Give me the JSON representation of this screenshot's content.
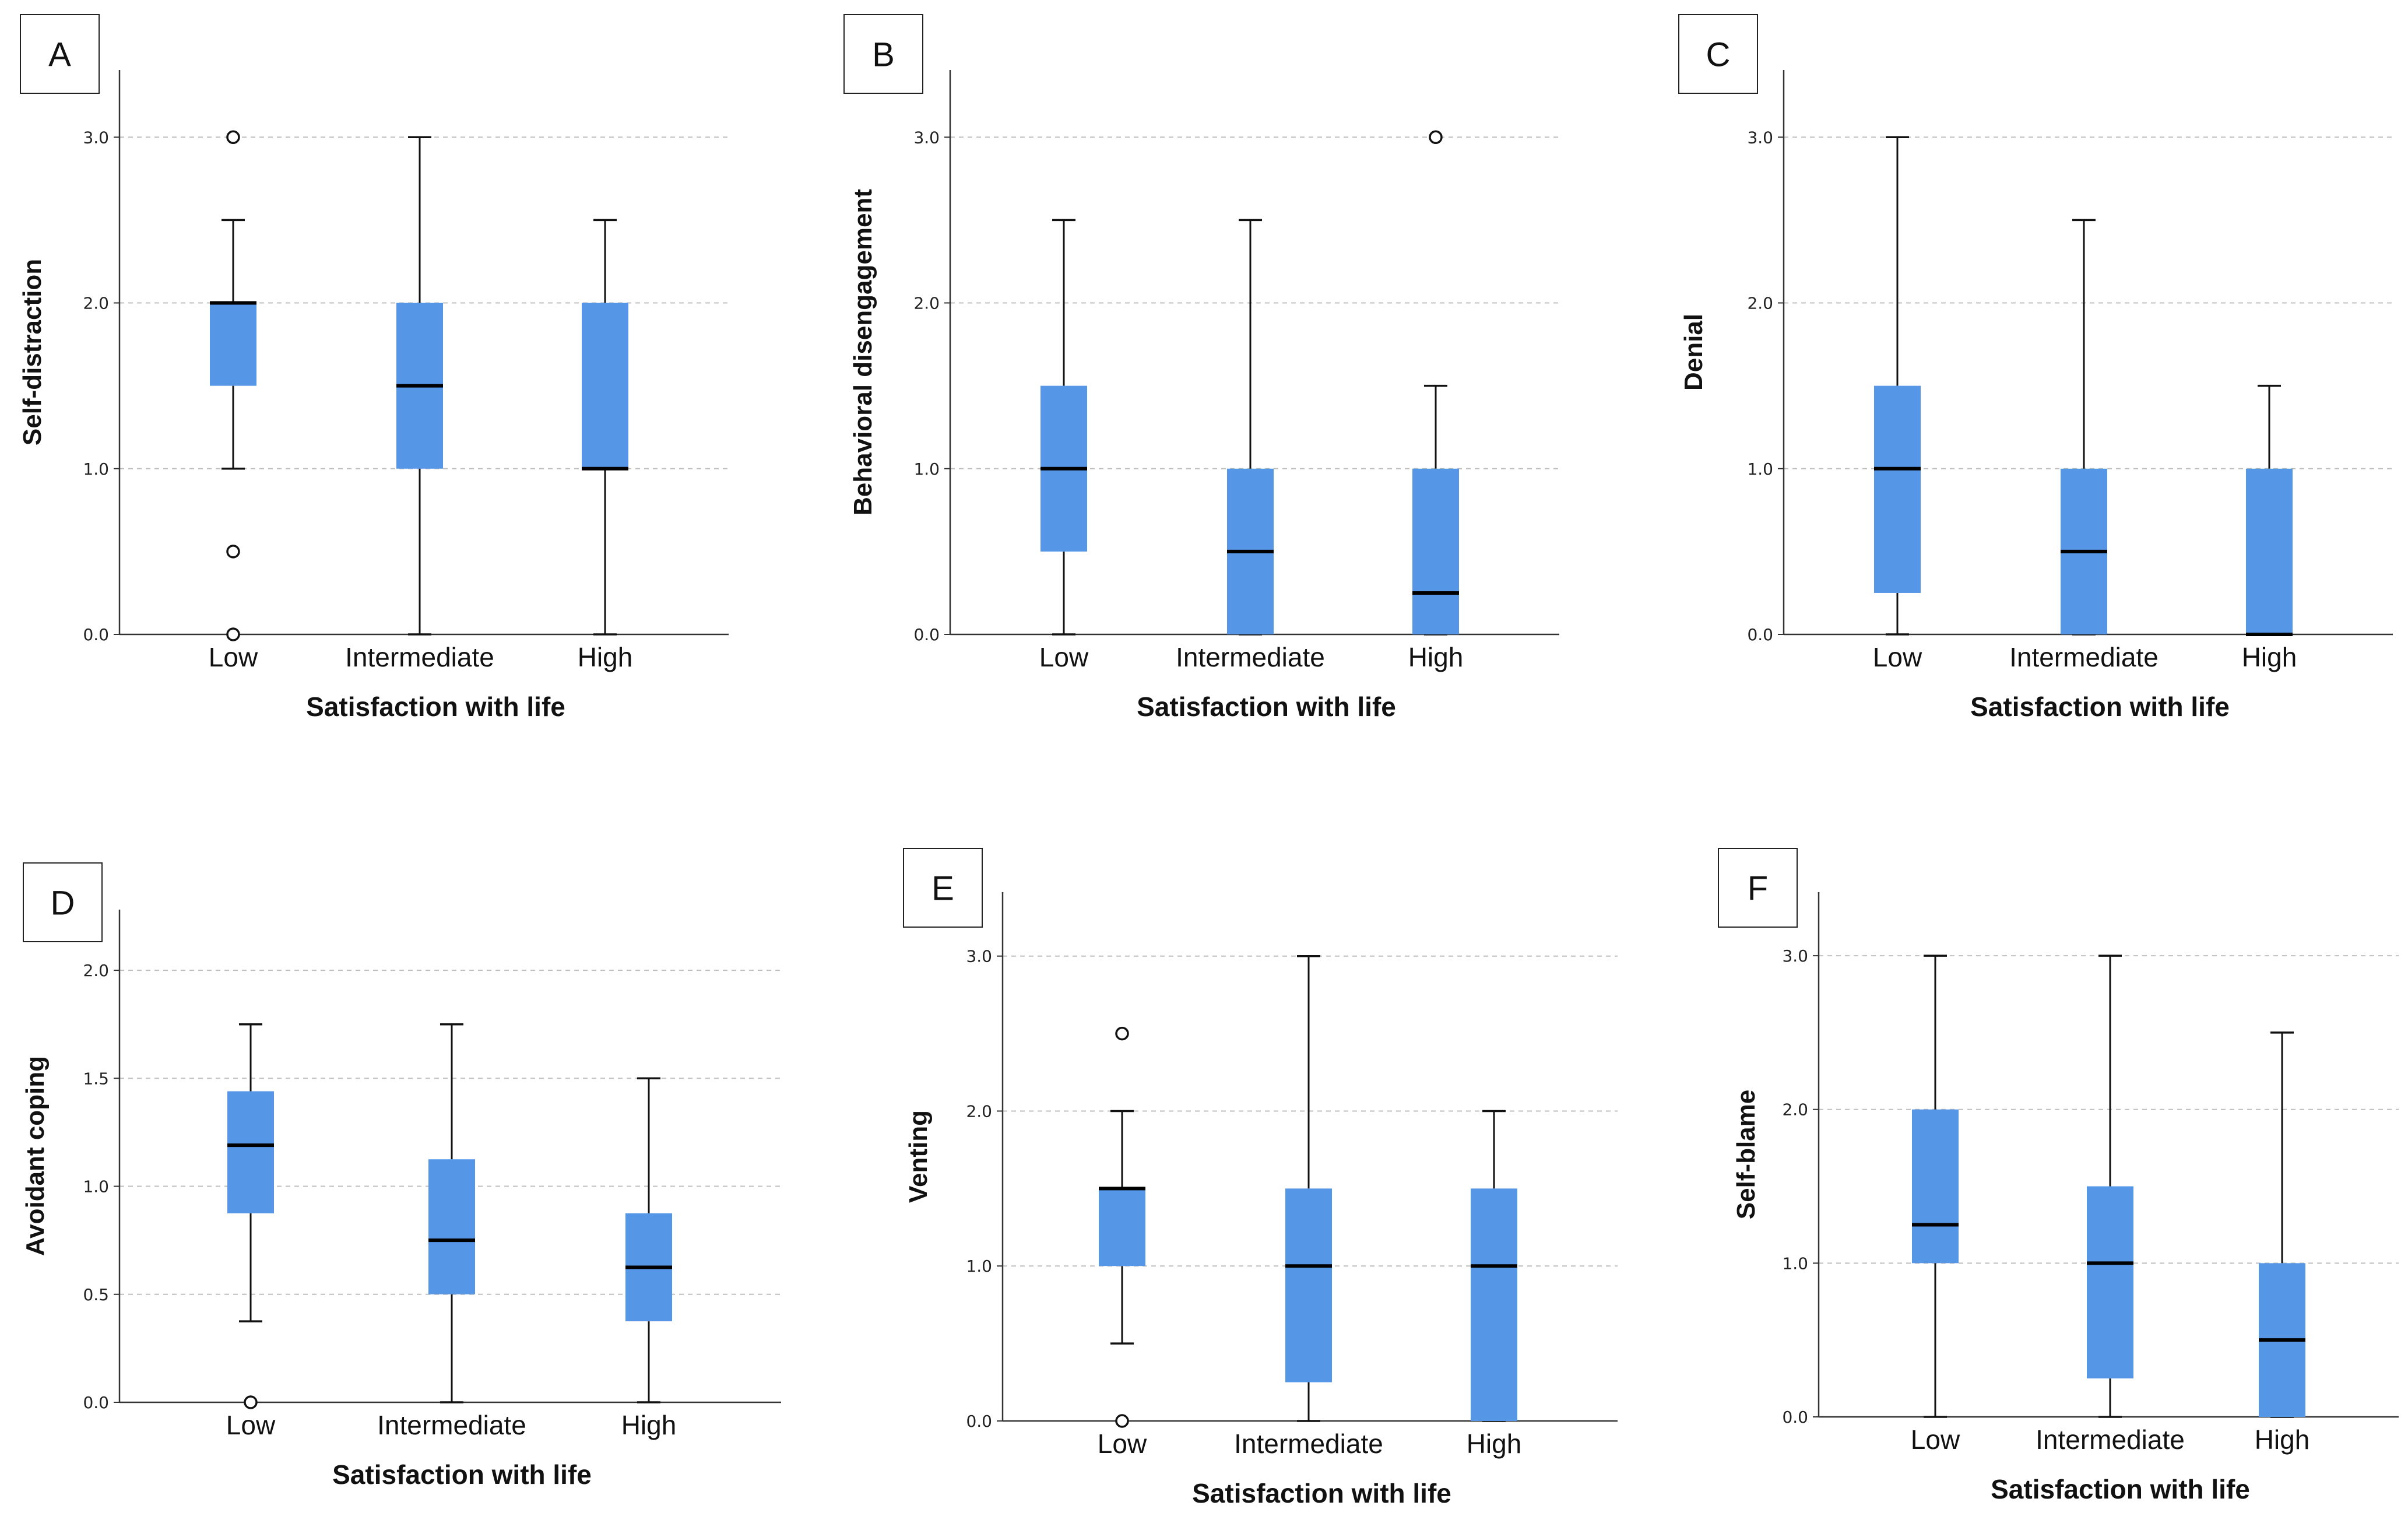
{
  "colors": {
    "box_fill": "#5596E6",
    "grid": "#bfbfbf",
    "axis": "#333333",
    "median": "#000000"
  },
  "chart_data": [
    {
      "panel": "A",
      "type": "boxplot",
      "ylabel": "Self-distraction",
      "xlabel": "Satisfaction with life",
      "ylim": [
        0,
        3.3
      ],
      "yticks": [
        "0.0",
        "1.0",
        "2.0",
        "3.0"
      ],
      "ytick_values": [
        0,
        1,
        2,
        3
      ],
      "categories": [
        "Low",
        "Intermediate",
        "High"
      ],
      "boxes": [
        {
          "min": 1.0,
          "q1": 1.5,
          "median": 2.0,
          "q3": 2.0,
          "max": 2.5,
          "outliers": [
            3.0,
            0.5,
            0.0
          ]
        },
        {
          "min": 0.0,
          "q1": 1.0,
          "median": 1.5,
          "q3": 2.0,
          "max": 3.0,
          "outliers": []
        },
        {
          "min": 0.0,
          "q1": 1.0,
          "median": 1.0,
          "q3": 2.0,
          "max": 2.5,
          "outliers": []
        }
      ]
    },
    {
      "panel": "B",
      "type": "boxplot",
      "ylabel": "Behavioral disengagement",
      "xlabel": "Satisfaction with life",
      "ylim": [
        0,
        3.3
      ],
      "yticks": [
        "0.0",
        "1.0",
        "2.0",
        "3.0"
      ],
      "ytick_values": [
        0,
        1,
        2,
        3
      ],
      "categories": [
        "Low",
        "Intermediate",
        "High"
      ],
      "boxes": [
        {
          "min": 0.0,
          "q1": 0.5,
          "median": 1.0,
          "q3": 1.5,
          "max": 2.5,
          "outliers": []
        },
        {
          "min": 0.0,
          "q1": 0.0,
          "median": 0.5,
          "q3": 1.0,
          "max": 2.5,
          "outliers": []
        },
        {
          "min": 0.0,
          "q1": 0.0,
          "median": 0.25,
          "q3": 1.0,
          "max": 1.5,
          "outliers": [
            3.0
          ]
        }
      ]
    },
    {
      "panel": "C",
      "type": "boxplot",
      "ylabel": "Denial",
      "xlabel": "Satisfaction with life",
      "ylim": [
        0,
        3.3
      ],
      "yticks": [
        "0.0",
        "1.0",
        "2.0",
        "3.0"
      ],
      "ytick_values": [
        0,
        1,
        2,
        3
      ],
      "categories": [
        "Low",
        "Intermediate",
        "High"
      ],
      "boxes": [
        {
          "min": 0.0,
          "q1": 0.25,
          "median": 1.0,
          "q3": 1.5,
          "max": 3.0,
          "outliers": []
        },
        {
          "min": 0.0,
          "q1": 0.0,
          "median": 0.5,
          "q3": 1.0,
          "max": 2.5,
          "outliers": []
        },
        {
          "min": 0.0,
          "q1": 0.0,
          "median": 0.0,
          "q3": 1.0,
          "max": 1.5,
          "outliers": []
        }
      ]
    },
    {
      "panel": "D",
      "type": "boxplot",
      "ylabel": "Avoidant coping",
      "xlabel": "Satisfaction with life",
      "ylim": [
        0,
        2.2
      ],
      "yticks": [
        "0.0",
        "0.5",
        "1.0",
        "1.5",
        "2.0"
      ],
      "ytick_values": [
        0,
        0.5,
        1.0,
        1.5,
        2.0
      ],
      "categories": [
        "Low",
        "Intermediate",
        "High"
      ],
      "boxes": [
        {
          "min": 0.375,
          "q1": 0.875,
          "median": 1.19,
          "q3": 1.44,
          "max": 1.75,
          "outliers": [
            0.0
          ]
        },
        {
          "min": 0.0,
          "q1": 0.5,
          "median": 0.75,
          "q3": 1.125,
          "max": 1.75,
          "outliers": []
        },
        {
          "min": 0.0,
          "q1": 0.375,
          "median": 0.625,
          "q3": 0.875,
          "max": 1.5,
          "outliers": []
        }
      ]
    },
    {
      "panel": "E",
      "type": "boxplot",
      "ylabel": "Venting",
      "xlabel": "Satisfaction with life",
      "ylim": [
        0,
        3.3
      ],
      "yticks": [
        "0.0",
        "1.0",
        "2.0",
        "3.0"
      ],
      "ytick_values": [
        0,
        1,
        2,
        3
      ],
      "categories": [
        "Low",
        "Intermediate",
        "High"
      ],
      "boxes": [
        {
          "min": 0.5,
          "q1": 1.0,
          "median": 1.5,
          "q3": 1.5,
          "max": 2.0,
          "outliers": [
            2.5,
            0.0
          ]
        },
        {
          "min": 0.0,
          "q1": 0.25,
          "median": 1.0,
          "q3": 1.5,
          "max": 3.0,
          "outliers": []
        },
        {
          "min": 0.0,
          "q1": 0.0,
          "median": 1.0,
          "q3": 1.5,
          "max": 2.0,
          "outliers": []
        }
      ]
    },
    {
      "panel": "F",
      "type": "boxplot",
      "ylabel": "Self-blame",
      "xlabel": "Satisfaction with life",
      "ylim": [
        0,
        3.3
      ],
      "yticks": [
        "0.0",
        "1.0",
        "2.0",
        "3.0"
      ],
      "ytick_values": [
        0,
        1,
        2,
        3
      ],
      "categories": [
        "Low",
        "Intermediate",
        "High"
      ],
      "boxes": [
        {
          "min": 0.0,
          "q1": 1.0,
          "median": 1.25,
          "q3": 2.0,
          "max": 3.0,
          "outliers": []
        },
        {
          "min": 0.0,
          "q1": 0.25,
          "median": 1.0,
          "q3": 1.5,
          "max": 3.0,
          "outliers": []
        },
        {
          "min": 0.0,
          "q1": 0.0,
          "median": 0.5,
          "q3": 1.0,
          "max": 2.5,
          "outliers": []
        }
      ]
    }
  ]
}
